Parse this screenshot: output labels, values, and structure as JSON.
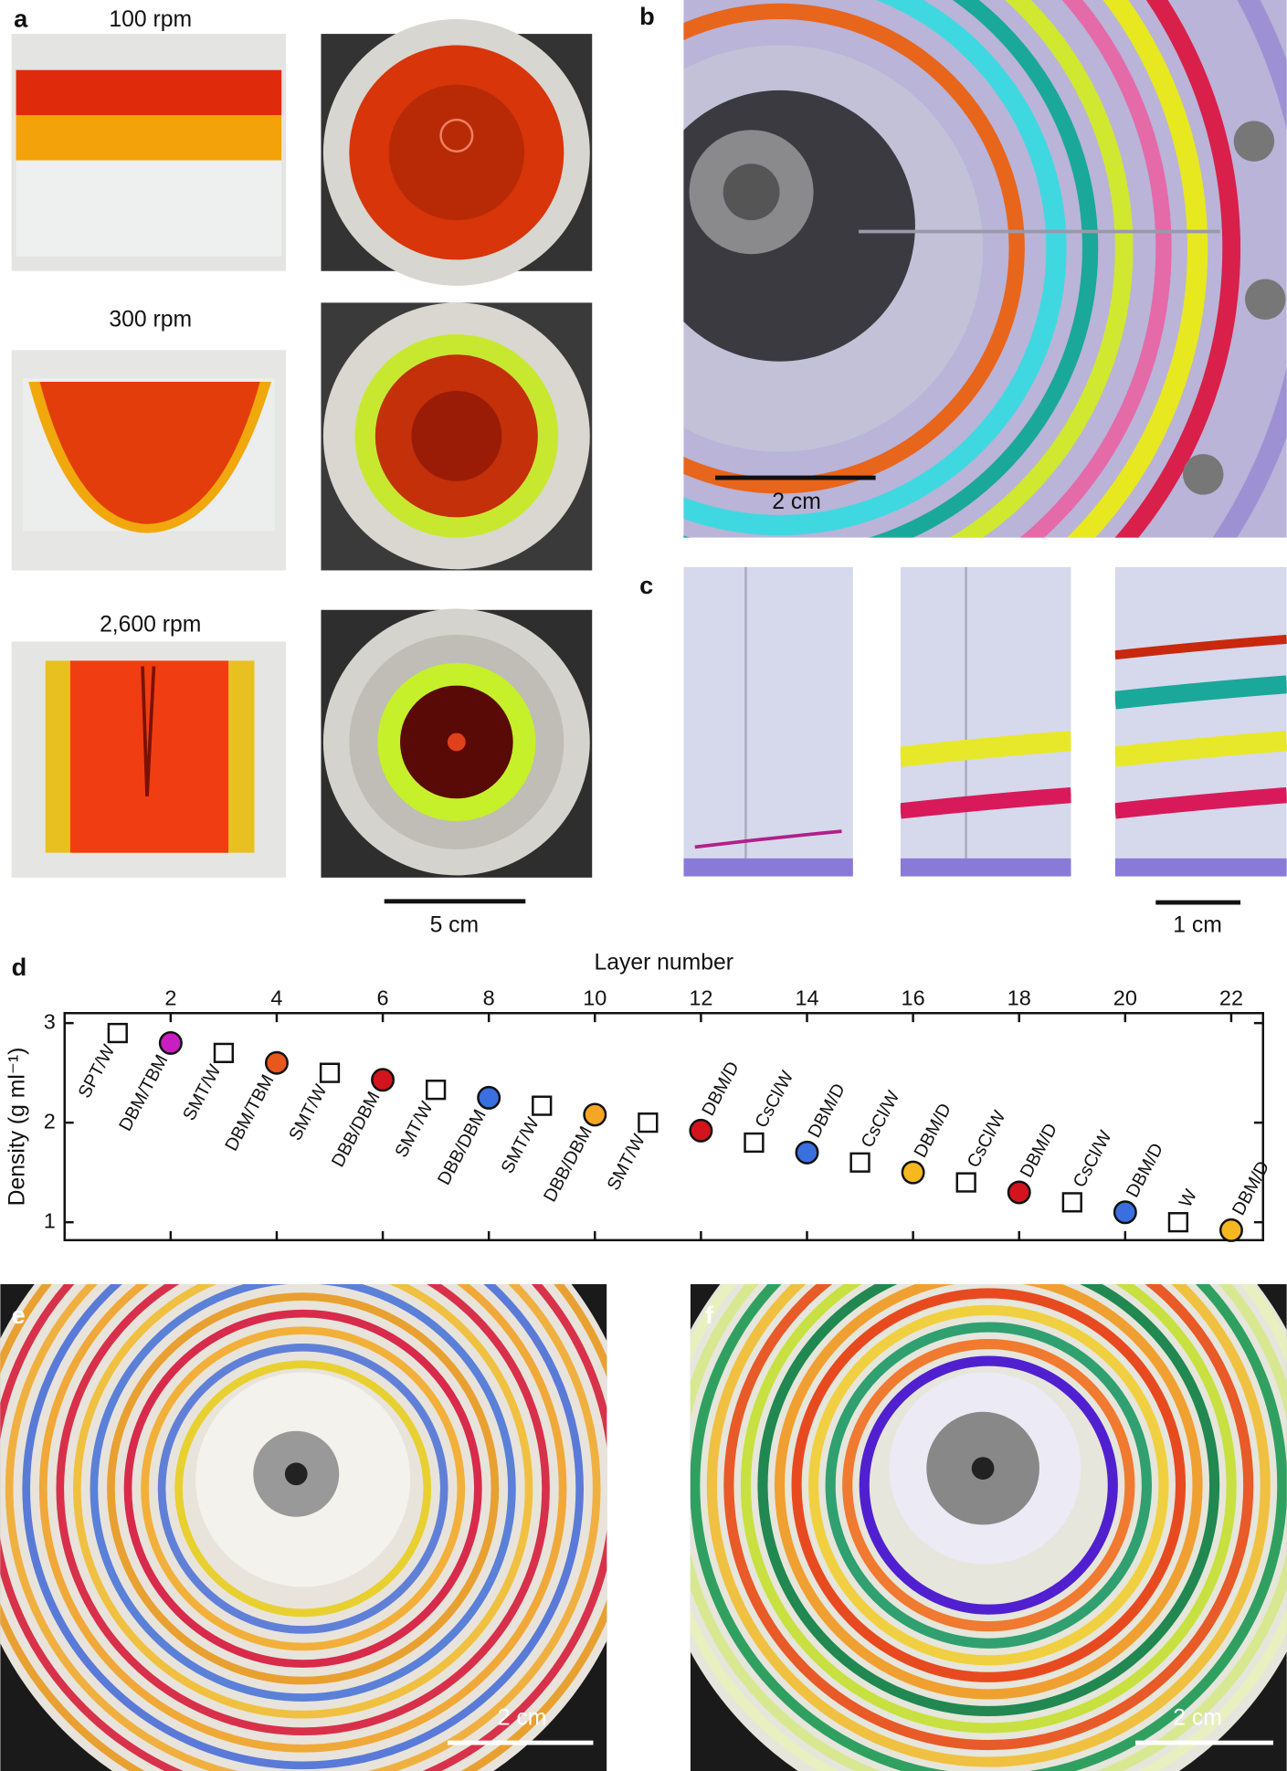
{
  "panel_labels": [
    "a",
    "b",
    "c",
    "d",
    "e",
    "f"
  ],
  "panel_a": {
    "speeds": [
      "100 rpm",
      "300 rpm",
      "2,600 rpm"
    ],
    "scale_bar": "5 cm"
  },
  "panel_b": {
    "scale_bar": "2 cm"
  },
  "panel_c": {
    "scale_bar": "1 cm"
  },
  "panel_e": {
    "scale_bar": "2 cm"
  },
  "panel_f": {
    "scale_bar": "2 cm"
  },
  "chart_data": {
    "type": "scatter",
    "xlabel": "Layer number",
    "ylabel": "Density (g ml⁻¹)",
    "x": [
      1,
      2,
      3,
      4,
      5,
      6,
      7,
      8,
      9,
      10,
      11,
      12,
      13,
      14,
      15,
      16,
      17,
      18,
      19,
      20,
      21,
      22
    ],
    "values": [
      2.9,
      2.8,
      2.7,
      2.6,
      2.5,
      2.43,
      2.33,
      2.25,
      2.17,
      2.08,
      2.0,
      1.92,
      1.8,
      1.7,
      1.6,
      1.5,
      1.4,
      1.3,
      1.2,
      1.1,
      1.0,
      0.92
    ],
    "point_labels": [
      "SPT/W",
      "DBM/TBM",
      "SMT/W",
      "DBM/TBM",
      "SMT/W",
      "DBB/DBM",
      "SMT/W",
      "DBB/DBM",
      "SMT/W",
      "DBB/DBM",
      "SMT/W",
      "DBM/D",
      "CsCl/W",
      "DBM/D",
      "CsCl/W",
      "DBM/D",
      "CsCl/W",
      "DBM/D",
      "CsCl/W",
      "DBM/D",
      "W",
      "DBM/D"
    ],
    "markers": [
      "square",
      "circle",
      "square",
      "circle",
      "square",
      "circle",
      "square",
      "circle",
      "square",
      "circle",
      "square",
      "circle",
      "square",
      "circle",
      "square",
      "circle",
      "square",
      "circle",
      "square",
      "circle",
      "square",
      "circle"
    ],
    "colors": [
      "#ffffff",
      "#c81fc0",
      "#ffffff",
      "#e8571b",
      "#ffffff",
      "#d4141c",
      "#ffffff",
      "#3a6fe0",
      "#ffffff",
      "#f5a623",
      "#ffffff",
      "#d4141c",
      "#ffffff",
      "#3a6fe0",
      "#ffffff",
      "#f5b820",
      "#ffffff",
      "#d4141c",
      "#ffffff",
      "#3a6fe0",
      "#ffffff",
      "#f5b820"
    ],
    "xlim": [
      0,
      22.6
    ],
    "ylim": [
      0.82,
      3.1
    ],
    "xticks": [
      2,
      4,
      6,
      8,
      10,
      12,
      14,
      16,
      18,
      20,
      22
    ],
    "yticks": [
      1,
      2,
      3
    ]
  }
}
